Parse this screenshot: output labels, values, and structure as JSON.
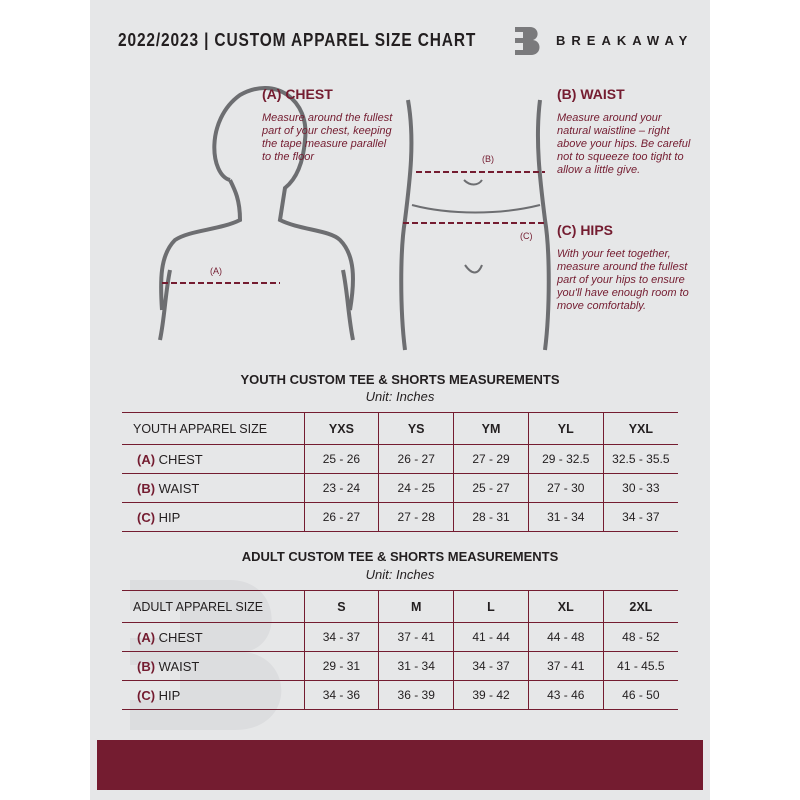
{
  "header": {
    "title": "2022/2023  |  CUSTOM APPAREL SIZE CHART",
    "brand": "BREAKAWAY",
    "logo_letter": "B"
  },
  "guide": {
    "chest": {
      "heading": "(A) CHEST",
      "marker": "(A)",
      "text": "Measure around the fullest part of your chest, keeping the tape measure parallel to the floor"
    },
    "waist": {
      "heading": "(B) WAIST",
      "marker": "(B)",
      "text": "Measure around your natural waistline – right above your hips. Be careful not to squeeze too tight to allow a little give."
    },
    "hips": {
      "heading": "(C) HIPS",
      "marker": "(C)",
      "text": "With your feet together, measure around the fullest part of your hips to ensure you'll have enough room to move comfortably."
    }
  },
  "youth": {
    "title": "YOUTH CUSTOM TEE & SHORTS MEASUREMENTS",
    "unit": "Unit: Inches",
    "size_label": "YOUTH APPAREL SIZE",
    "sizes": [
      "YXS",
      "YS",
      "YM",
      "YL",
      "YXL"
    ],
    "rows": [
      {
        "code": "(A)",
        "name": "CHEST",
        "values": [
          "25 - 26",
          "26 - 27",
          "27 - 29",
          "29 - 32.5",
          "32.5 - 35.5"
        ]
      },
      {
        "code": "(B)",
        "name": "WAIST",
        "values": [
          "23 - 24",
          "24 - 25",
          "25 - 27",
          "27 - 30",
          "30 - 33"
        ]
      },
      {
        "code": "(C)",
        "name": "HIP",
        "values": [
          "26 - 27",
          "27 - 28",
          "28 - 31",
          "31 - 34",
          "34 - 37"
        ]
      }
    ]
  },
  "adult": {
    "title": "ADULT CUSTOM TEE & SHORTS MEASUREMENTS",
    "unit": "Unit: Inches",
    "size_label": "ADULT APPAREL SIZE",
    "sizes": [
      "S",
      "M",
      "L",
      "XL",
      "2XL"
    ],
    "rows": [
      {
        "code": "(A)",
        "name": "CHEST",
        "values": [
          "34 - 37",
          "37 - 41",
          "41 - 44",
          "44 - 48",
          "48 - 52"
        ]
      },
      {
        "code": "(B)",
        "name": "WAIST",
        "values": [
          "29 - 31",
          "31 - 34",
          "34 - 37",
          "37 - 41",
          "41 - 45.5"
        ]
      },
      {
        "code": "(C)",
        "name": "HIP",
        "values": [
          "34 - 36",
          "36 - 39",
          "39 - 42",
          "43 - 46",
          "46 - 50"
        ]
      }
    ]
  },
  "colors": {
    "accent": "#741c30",
    "background": "#e6e7e8"
  }
}
